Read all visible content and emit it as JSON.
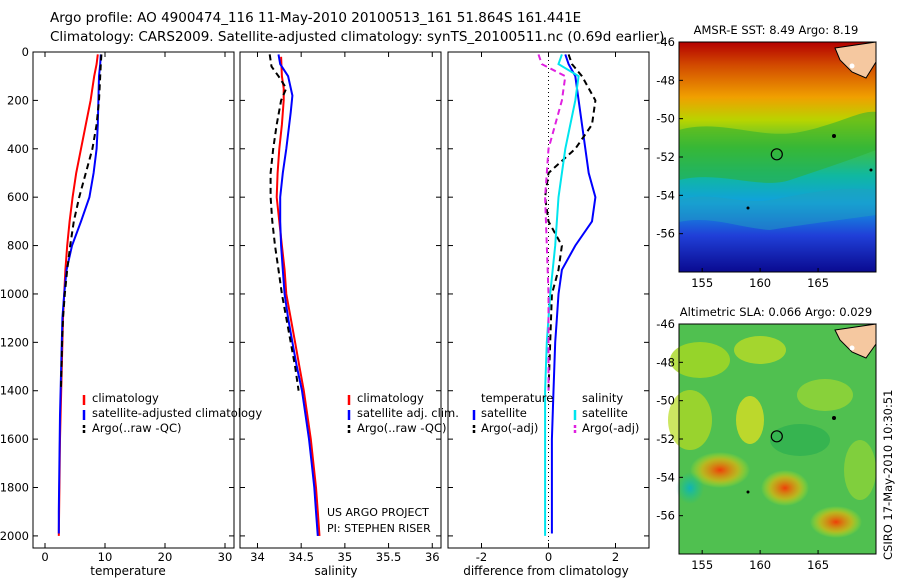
{
  "header": {
    "title_line1": "Argo profile: AO 4900474_116 11-May-2010 20100513_161 51.864S 161.441E",
    "title_line2": "Climatology: CARS2009. Satellite-adjusted climatology: synTS_20100511.nc (0.69d earlier)"
  },
  "colors": {
    "climatology": "#ff0000",
    "satellite": "#0000ff",
    "argo": "#000000",
    "satellite_diff": "#00e5ee",
    "argo_adj_diff": "#e020e0",
    "marker": "#000000"
  },
  "chart_data": [
    {
      "type": "line",
      "id": "temperature",
      "xlabel": "temperature",
      "xlim": [
        -2,
        31.5
      ],
      "ylim": [
        0,
        2050
      ],
      "y_reversed": true,
      "xticks": [
        0,
        10,
        20,
        30
      ],
      "yticks": [
        0,
        200,
        400,
        600,
        800,
        1000,
        1200,
        1400,
        1600,
        1800,
        2000
      ],
      "series": [
        {
          "name": "climatology",
          "color": "#ff0000",
          "dash": "",
          "points": [
            [
              8.8,
              10
            ],
            [
              8.6,
              50
            ],
            [
              8.2,
              100
            ],
            [
              7.6,
              200
            ],
            [
              6.8,
              300
            ],
            [
              6.0,
              400
            ],
            [
              5.2,
              500
            ],
            [
              4.6,
              600
            ],
            [
              4.1,
              700
            ],
            [
              3.7,
              800
            ],
            [
              3.4,
              900
            ],
            [
              3.2,
              1000
            ],
            [
              3.0,
              1100
            ],
            [
              2.9,
              1200
            ],
            [
              2.8,
              1300
            ],
            [
              2.7,
              1400
            ],
            [
              2.6,
              1500
            ],
            [
              2.5,
              1600
            ],
            [
              2.45,
              1700
            ],
            [
              2.4,
              1800
            ],
            [
              2.35,
              1900
            ],
            [
              2.3,
              2000
            ]
          ]
        },
        {
          "name": "satellite-adjusted climatology",
          "color": "#0000ff",
          "dash": "",
          "points": [
            [
              9.3,
              10
            ],
            [
              9.2,
              50
            ],
            [
              9.0,
              100
            ],
            [
              8.9,
              200
            ],
            [
              8.8,
              300
            ],
            [
              8.6,
              400
            ],
            [
              8.1,
              500
            ],
            [
              7.4,
              600
            ],
            [
              6.0,
              700
            ],
            [
              4.5,
              800
            ],
            [
              3.6,
              900
            ],
            [
              3.2,
              1000
            ],
            [
              2.9,
              1100
            ],
            [
              2.8,
              1200
            ],
            [
              2.7,
              1300
            ],
            [
              2.6,
              1400
            ],
            [
              2.5,
              1500
            ],
            [
              2.45,
              1600
            ],
            [
              2.4,
              1700
            ],
            [
              2.35,
              1800
            ],
            [
              2.3,
              1900
            ],
            [
              2.3,
              1990
            ]
          ]
        },
        {
          "name": "Argo(..raw -QC)",
          "color": "#000000",
          "dash": "6,4",
          "points": [
            [
              9.4,
              10
            ],
            [
              9.3,
              50
            ],
            [
              9.2,
              100
            ],
            [
              9.0,
              200
            ],
            [
              8.6,
              300
            ],
            [
              7.9,
              400
            ],
            [
              6.8,
              500
            ],
            [
              5.7,
              600
            ],
            [
              4.8,
              700
            ],
            [
              4.2,
              800
            ],
            [
              3.7,
              900
            ],
            [
              3.3,
              1000
            ],
            [
              3.0,
              1100
            ],
            [
              2.85,
              1200
            ],
            [
              2.75,
              1300
            ],
            [
              2.65,
              1400
            ]
          ]
        }
      ],
      "legend": [
        "climatology",
        "satellite-adjusted climatology",
        "Argo(..raw -QC)"
      ]
    },
    {
      "type": "line",
      "id": "salinity",
      "xlabel": "salinity",
      "xlim": [
        33.8,
        36.1
      ],
      "ylim": [
        0,
        2050
      ],
      "y_reversed": true,
      "xticks": [
        34,
        34.5,
        35,
        35.5,
        36
      ],
      "series": [
        {
          "name": "climatology",
          "color": "#ff0000",
          "dash": "",
          "points": [
            [
              34.27,
              20
            ],
            [
              34.28,
              100
            ],
            [
              34.3,
              150
            ],
            [
              34.3,
              200
            ],
            [
              34.28,
              300
            ],
            [
              34.25,
              400
            ],
            [
              34.23,
              500
            ],
            [
              34.22,
              600
            ],
            [
              34.25,
              700
            ],
            [
              34.28,
              800
            ],
            [
              34.31,
              900
            ],
            [
              34.33,
              1000
            ],
            [
              34.38,
              1100
            ],
            [
              34.43,
              1200
            ],
            [
              34.48,
              1300
            ],
            [
              34.53,
              1400
            ],
            [
              34.57,
              1500
            ],
            [
              34.61,
              1600
            ],
            [
              34.64,
              1700
            ],
            [
              34.67,
              1800
            ],
            [
              34.69,
              1900
            ],
            [
              34.71,
              2000
            ]
          ]
        },
        {
          "name": "satellite adj. clim.",
          "color": "#0000ff",
          "dash": "",
          "points": [
            [
              34.24,
              10
            ],
            [
              34.26,
              50
            ],
            [
              34.35,
              100
            ],
            [
              34.4,
              180
            ],
            [
              34.38,
              250
            ],
            [
              34.33,
              400
            ],
            [
              34.29,
              500
            ],
            [
              34.26,
              600
            ],
            [
              34.26,
              700
            ],
            [
              34.27,
              800
            ],
            [
              34.29,
              900
            ],
            [
              34.31,
              1000
            ],
            [
              34.35,
              1100
            ],
            [
              34.4,
              1200
            ],
            [
              34.45,
              1300
            ],
            [
              34.51,
              1400
            ],
            [
              34.55,
              1500
            ],
            [
              34.59,
              1600
            ],
            [
              34.62,
              1700
            ],
            [
              34.65,
              1800
            ],
            [
              34.67,
              1900
            ],
            [
              34.69,
              2000
            ]
          ]
        },
        {
          "name": "Argo(..raw -QC)",
          "color": "#000000",
          "dash": "6,4",
          "points": [
            [
              34.14,
              10
            ],
            [
              34.16,
              60
            ],
            [
              34.24,
              100
            ],
            [
              34.33,
              150
            ],
            [
              34.27,
              200
            ],
            [
              34.22,
              300
            ],
            [
              34.18,
              400
            ],
            [
              34.15,
              500
            ],
            [
              34.15,
              600
            ],
            [
              34.17,
              700
            ],
            [
              34.2,
              800
            ],
            [
              34.24,
              900
            ],
            [
              34.28,
              1000
            ],
            [
              34.33,
              1100
            ],
            [
              34.38,
              1200
            ],
            [
              34.43,
              1300
            ],
            [
              34.47,
              1400
            ]
          ]
        }
      ],
      "legend": [
        "climatology",
        "satellite adj. clim.",
        "Argo(..raw -QC)"
      ],
      "credit_line1": "US ARGO PROJECT",
      "credit_line2": "PI: STEPHEN RISER"
    },
    {
      "type": "line",
      "id": "difference",
      "xlabel": "difference from climatology",
      "xlim": [
        -3,
        3
      ],
      "ylim": [
        0,
        2050
      ],
      "y_reversed": true,
      "xticks": [
        -2,
        0,
        2
      ],
      "zero_line": true,
      "series": [
        {
          "name": "temperature satellite",
          "color": "#0000ff",
          "dash": "",
          "points": [
            [
              0.5,
              10
            ],
            [
              0.6,
              50
            ],
            [
              0.8,
              100
            ],
            [
              1.0,
              300
            ],
            [
              1.2,
              500
            ],
            [
              1.4,
              600
            ],
            [
              1.3,
              700
            ],
            [
              0.8,
              800
            ],
            [
              0.4,
              900
            ],
            [
              0.3,
              1000
            ],
            [
              0.25,
              1100
            ],
            [
              0.2,
              1200
            ],
            [
              0.15,
              1400
            ],
            [
              0.1,
              1600
            ],
            [
              0.1,
              1800
            ],
            [
              0.1,
              1990
            ]
          ]
        },
        {
          "name": "temperature Argo(-adj)",
          "color": "#000000",
          "dash": "6,4",
          "points": [
            [
              0.6,
              10
            ],
            [
              0.7,
              50
            ],
            [
              1.0,
              100
            ],
            [
              1.4,
              200
            ],
            [
              1.3,
              300
            ],
            [
              0.8,
              400
            ],
            [
              0.0,
              500
            ],
            [
              -0.1,
              600
            ],
            [
              0.0,
              700
            ],
            [
              0.4,
              800
            ],
            [
              0.3,
              900
            ],
            [
              0.1,
              1000
            ],
            [
              0.05,
              1200
            ],
            [
              0.0,
              1400
            ]
          ]
        },
        {
          "name": "salinity satellite",
          "color": "#00e5ee",
          "dash": "",
          "points": [
            [
              0.4,
              10
            ],
            [
              0.3,
              50
            ],
            [
              0.9,
              100
            ],
            [
              0.8,
              200
            ],
            [
              0.5,
              400
            ],
            [
              0.3,
              600
            ],
            [
              0.2,
              800
            ],
            [
              0.05,
              1000
            ],
            [
              -0.05,
              1200
            ],
            [
              -0.1,
              1400
            ],
            [
              -0.1,
              1600
            ],
            [
              -0.1,
              1800
            ],
            [
              -0.1,
              2000
            ]
          ]
        },
        {
          "name": "salinity Argo(-adj)",
          "color": "#e020e0",
          "dash": "6,4",
          "points": [
            [
              -0.3,
              10
            ],
            [
              -0.2,
              50
            ],
            [
              0.5,
              100
            ],
            [
              0.4,
              200
            ],
            [
              0.0,
              400
            ],
            [
              -0.1,
              600
            ],
            [
              -0.05,
              800
            ],
            [
              0.0,
              1000
            ],
            [
              0.0,
              1200
            ],
            [
              0.0,
              1400
            ]
          ]
        }
      ],
      "legend_headers": [
        "temperature",
        "salinity"
      ],
      "legend_left": [
        "satellite",
        "Argo(-adj)"
      ],
      "legend_right": [
        "satellite",
        "Argo(-adj)"
      ]
    },
    {
      "type": "heatmap",
      "id": "sst_map",
      "title": "AMSR-E SST: 8.49 Argo: 8.19",
      "xticks": [
        155,
        160,
        165
      ],
      "yticks": [
        -46,
        -48,
        -50,
        -52,
        -54,
        -56
      ],
      "xlim": [
        153,
        170
      ],
      "ylim": [
        -58,
        -46
      ],
      "marker": [
        161.44,
        -51.86
      ]
    },
    {
      "type": "heatmap",
      "id": "sla_map",
      "title": "Altimetric SLA: 0.066 Argo: 0.029",
      "xticks": [
        155,
        160,
        165
      ],
      "yticks": [
        -46,
        -48,
        -50,
        -52,
        -54,
        -56
      ],
      "xlim": [
        153,
        170
      ],
      "ylim": [
        -58,
        -46
      ],
      "marker": [
        161.44,
        -51.86
      ],
      "side_label": "CSIRO 17-May-2010 10:30:51"
    }
  ]
}
